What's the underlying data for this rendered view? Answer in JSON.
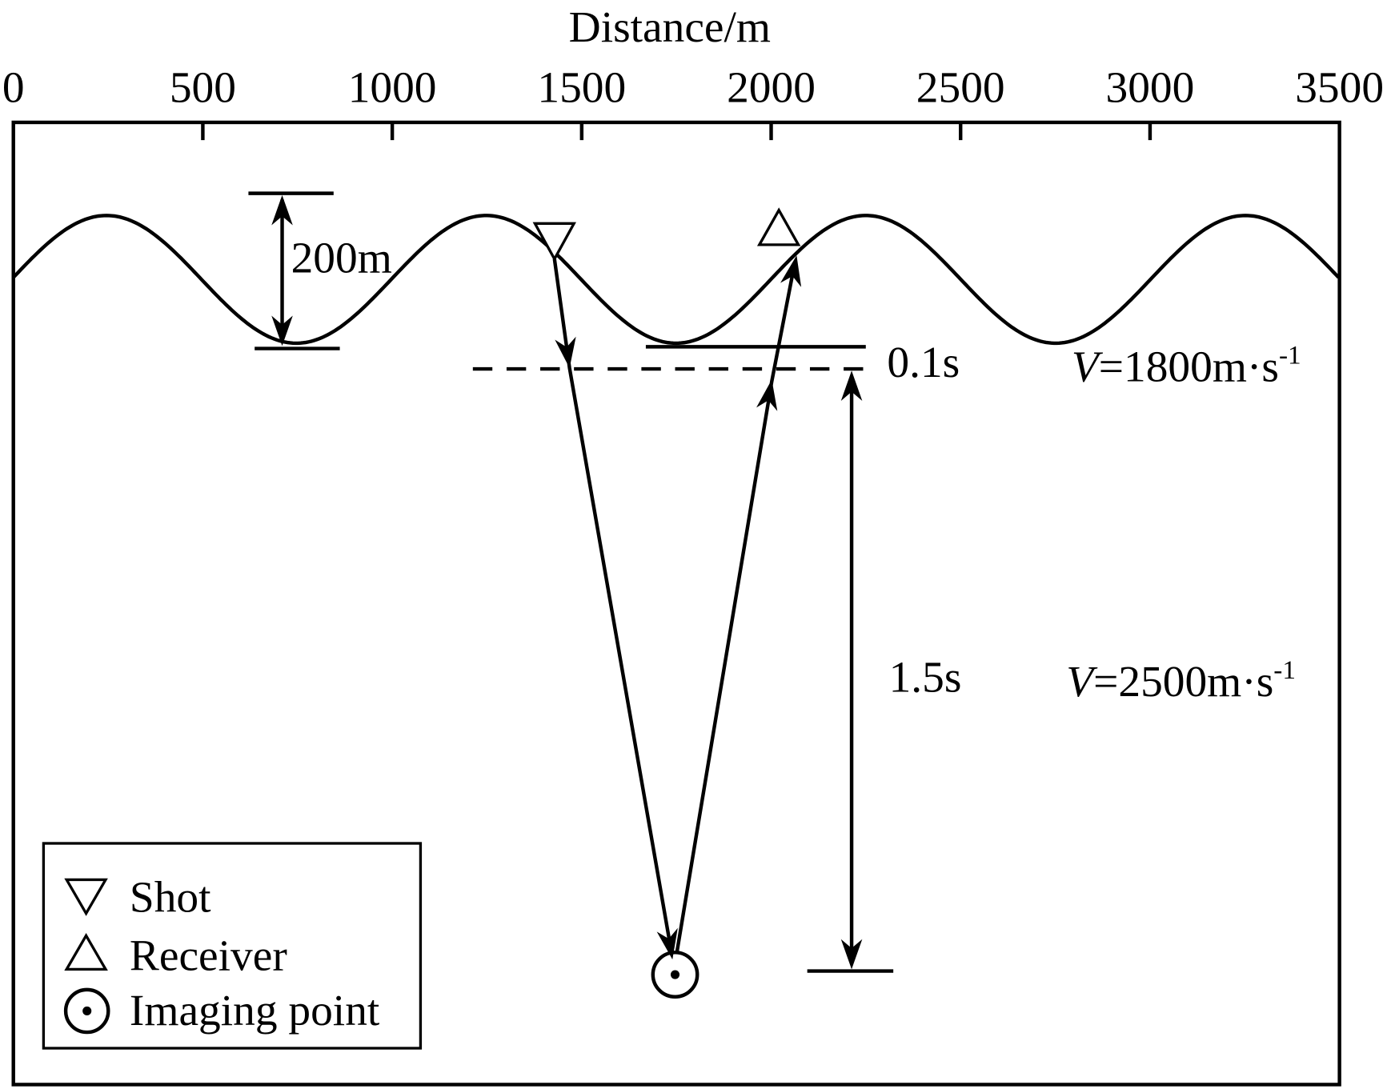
{
  "axis": {
    "title": "Distance/m",
    "ticks": [
      0,
      500,
      1000,
      1500,
      2000,
      2500,
      3000,
      3500
    ]
  },
  "annotations": {
    "relief": "200m",
    "layer_time": "0.1s",
    "target_time": "1.5s"
  },
  "velocities": [
    {
      "symbol": "V",
      "text": "=1800m·s",
      "exponent": "-1"
    },
    {
      "symbol": "V",
      "text": "=2500m·s",
      "exponent": "-1"
    }
  ],
  "legend": {
    "items": [
      "Shot",
      "Receiver",
      "Imaging point"
    ]
  }
}
